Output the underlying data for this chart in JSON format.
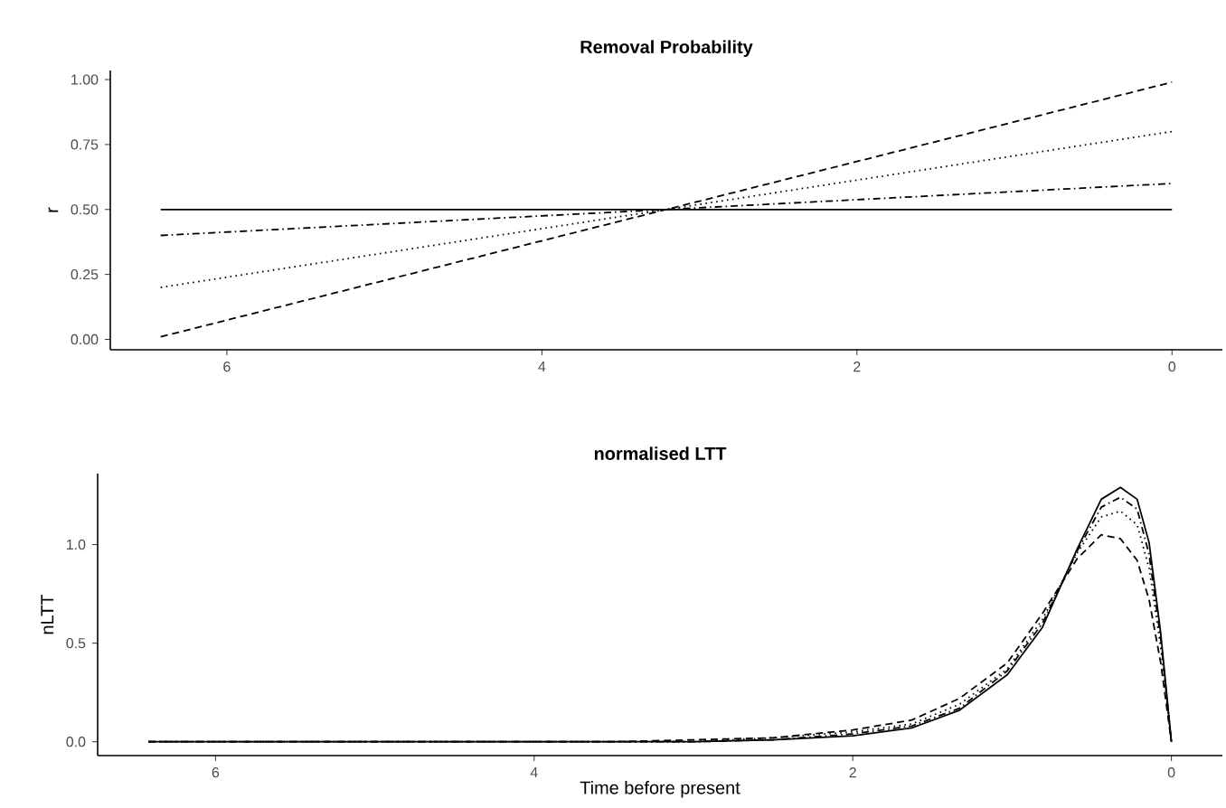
{
  "chart_data": [
    {
      "type": "line",
      "title": "Removal Probability",
      "ylabel": "r",
      "xlim": [
        6.74,
        -0.32
      ],
      "ylim": [
        -0.04,
        1.035
      ],
      "xticks": [
        6,
        4,
        2,
        0
      ],
      "yticks": [
        {
          "value": 0,
          "label": "0.00"
        },
        {
          "value": 0.25,
          "label": "0.25"
        },
        {
          "value": 0.5,
          "label": "0.50"
        },
        {
          "value": 0.75,
          "label": "0.75"
        },
        {
          "value": 1,
          "label": "1.00"
        }
      ],
      "grid": false,
      "marker": "none",
      "x": [
        6.42,
        0
      ],
      "series": [
        {
          "color": "#000000",
          "line_style": "solid",
          "values": [
            0.5,
            0.5
          ]
        },
        {
          "color": "#000000",
          "line_style": "dashed",
          "values": [
            0.01,
            0.99
          ]
        },
        {
          "color": "#000000",
          "line_style": "dotted",
          "values": [
            0.2,
            0.8
          ]
        },
        {
          "color": "#000000",
          "line_style": "dashdot",
          "values": [
            0.4,
            0.6
          ]
        }
      ]
    },
    {
      "type": "line",
      "title": "normalised LTT",
      "xlabel": "Time before present",
      "ylabel": "nLTT",
      "xlim": [
        6.74,
        -0.32
      ],
      "ylim": [
        -0.07,
        1.36
      ],
      "xticks": [
        6,
        4,
        2,
        0
      ],
      "yticks": [
        {
          "value": 0,
          "label": "0.0"
        },
        {
          "value": 0.5,
          "label": "0.5"
        },
        {
          "value": 1,
          "label": "1.0"
        }
      ],
      "grid": false,
      "marker": "none",
      "x": [
        6.42,
        5,
        4,
        3.5,
        3,
        2.5,
        2,
        1.63,
        1.33,
        1.03,
        0.81,
        0.59,
        0.44,
        0.32,
        0.215,
        0.14,
        0.067,
        0
      ],
      "series": [
        {
          "color": "#000000",
          "line_style": "solid",
          "values": [
            0,
            0,
            0,
            0,
            0,
            0.01,
            0.03,
            0.07,
            0.16,
            0.34,
            0.58,
            0.98,
            1.23,
            1.29,
            1.23,
            1.01,
            0.55,
            0
          ]
        },
        {
          "color": "#000000",
          "line_style": "dashed",
          "values": [
            0,
            0,
            0,
            0,
            0.01,
            0.02,
            0.06,
            0.11,
            0.22,
            0.4,
            0.65,
            0.93,
            1.05,
            1.03,
            0.92,
            0.72,
            0.4,
            0
          ]
        },
        {
          "color": "#000000",
          "line_style": "dotted",
          "values": [
            0,
            0,
            0,
            0,
            0,
            0.02,
            0.05,
            0.09,
            0.19,
            0.37,
            0.62,
            0.96,
            1.14,
            1.17,
            1.1,
            0.88,
            0.48,
            0
          ]
        },
        {
          "color": "#000000",
          "line_style": "dashdot",
          "values": [
            0,
            0,
            0,
            0,
            0,
            0.01,
            0.04,
            0.08,
            0.17,
            0.36,
            0.6,
            0.97,
            1.19,
            1.24,
            1.18,
            0.95,
            0.52,
            0
          ]
        }
      ]
    }
  ]
}
